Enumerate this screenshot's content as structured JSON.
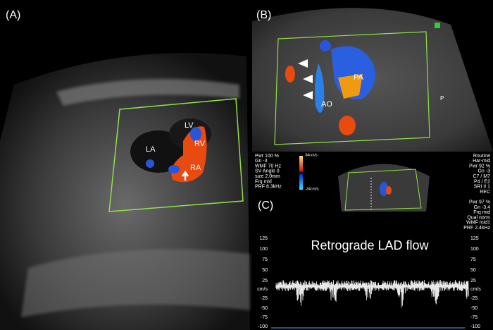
{
  "panel_a": {
    "label": "(A)",
    "structures": [
      "LV",
      "LA",
      "RV",
      "RA"
    ]
  },
  "panel_b": {
    "label": "(B)",
    "structures": [
      "PA",
      "AO"
    ],
    "edge_marker": "P"
  },
  "panel_c": {
    "label": "(C)",
    "title": "Retrograde LAD flow",
    "settings_left": [
      "Pwr 100 %",
      "Gn -3",
      "WMF 70 Hz",
      "SV Angle  0",
      "size  2.0mm",
      "Frq mid",
      "PRF  8.3kHz"
    ],
    "color_scale": [
      "34cm/s",
      "-34cm/s"
    ],
    "settings_right": [
      "Routine",
      "Har-mid",
      "Pwr 92 %",
      "Gn -3",
      "C7 / M7",
      "P4 / E2",
      "SRI II 1",
      "REC",
      "",
      "Pwr 97 %",
      "Gn -3.4",
      "Frq mid",
      "Qual norm",
      "WMF mid1",
      "PRF 2.4kHz"
    ],
    "scale_left": [
      125,
      100,
      75,
      50,
      25,
      "cm/s",
      -25,
      -50,
      -75,
      -100
    ],
    "scale_right": [
      125,
      100,
      75,
      50,
      25,
      "cm/s",
      -25,
      -50,
      -75,
      -100
    ]
  }
}
